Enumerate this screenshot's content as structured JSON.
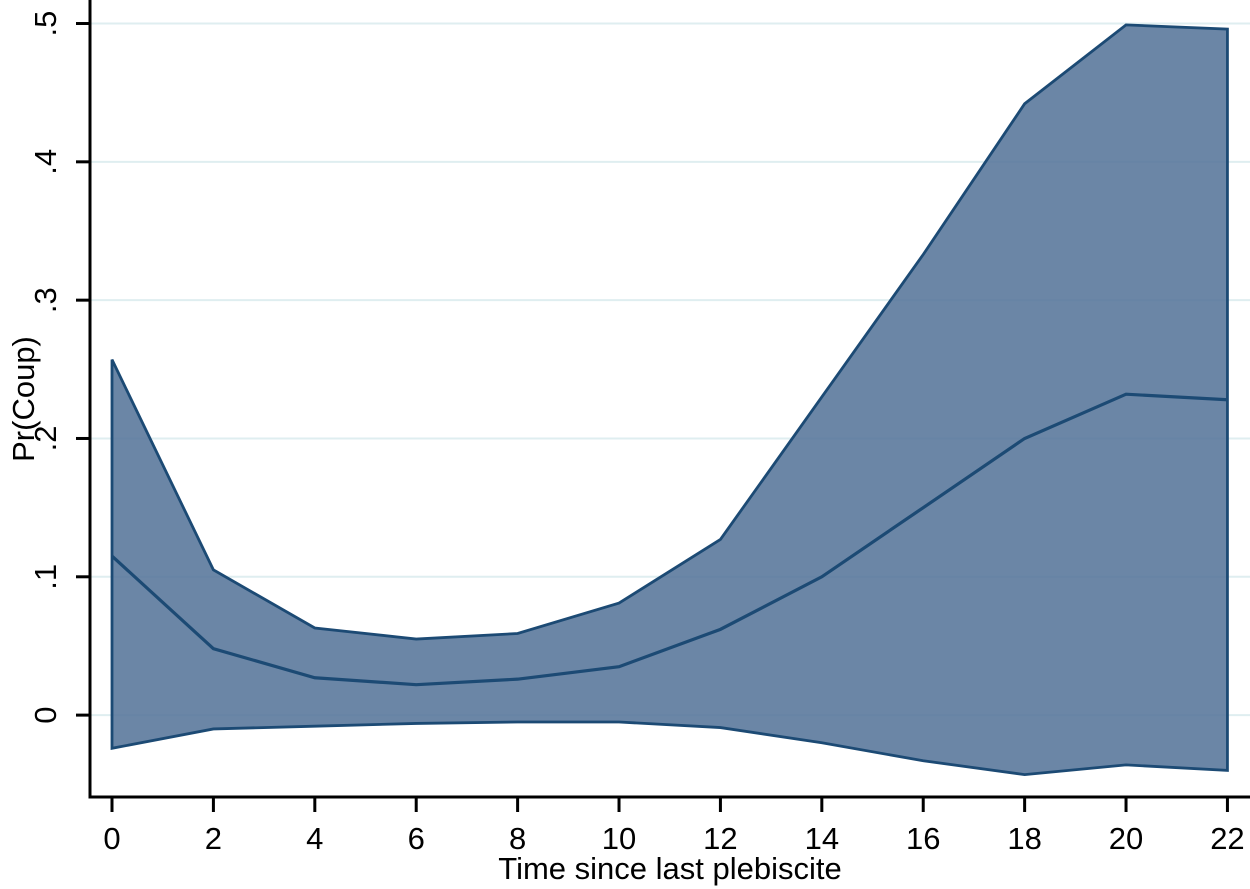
{
  "chart_data": {
    "type": "area",
    "title": "",
    "xlabel": "Time since last plebiscite",
    "ylabel": "Pr(Coup)",
    "x": [
      0,
      2,
      4,
      6,
      8,
      10,
      12,
      14,
      16,
      18,
      20,
      22
    ],
    "series": [
      {
        "name": "point-estimate",
        "values": [
          0.115,
          0.048,
          0.027,
          0.022,
          0.026,
          0.035,
          0.062,
          0.1,
          0.15,
          0.2,
          0.232,
          0.228
        ]
      },
      {
        "name": "upper-confidence-bound",
        "values": [
          0.257,
          0.105,
          0.063,
          0.055,
          0.059,
          0.081,
          0.127,
          0.23,
          0.333,
          0.442,
          0.499,
          0.496
        ]
      },
      {
        "name": "lower-confidence-bound",
        "values": [
          -0.024,
          -0.01,
          -0.008,
          -0.006,
          -0.005,
          -0.005,
          -0.009,
          -0.02,
          -0.033,
          -0.043,
          -0.036,
          -0.04
        ]
      }
    ],
    "xticks": {
      "values": [
        0,
        2,
        4,
        6,
        8,
        10,
        12,
        14,
        16,
        18,
        20,
        22
      ],
      "labels": [
        "0",
        "2",
        "4",
        "6",
        "8",
        "10",
        "12",
        "14",
        "16",
        "18",
        "20",
        "22"
      ]
    },
    "yticks": {
      "values": [
        0,
        0.1,
        0.2,
        0.3,
        0.4,
        0.5
      ],
      "labels": [
        "0",
        ".1",
        ".2",
        ".3",
        ".4",
        ".5"
      ]
    },
    "xlim": [
      -0.434,
      22.445
    ],
    "ylim": [
      -0.0592,
      0.517
    ],
    "grid": true,
    "legend": "none",
    "colors": {
      "band_fill": "#56759a",
      "band_fill_opacity": 0.88,
      "line": "#1c4a74",
      "grid": "#dfeef0",
      "axis": "#000000",
      "background": "#ffffff"
    }
  }
}
